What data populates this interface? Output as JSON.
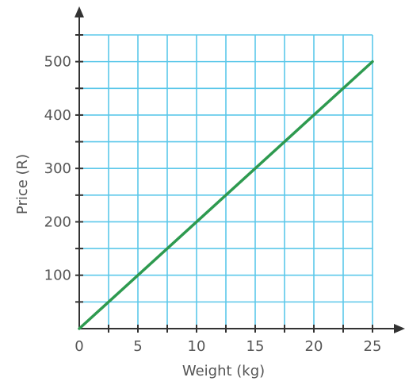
{
  "chart_data": {
    "type": "line",
    "title": "",
    "xlabel": "Weight  (kg)",
    "ylabel": "Price (R)",
    "xlim": [
      0,
      25
    ],
    "ylim": [
      0,
      550
    ],
    "xticks": [
      0,
      5,
      10,
      15,
      20,
      25
    ],
    "yticks": [
      100,
      200,
      300,
      400,
      500
    ],
    "x_minor_step": 2.5,
    "y_minor_step": 50,
    "grid": true,
    "series": [
      {
        "x": [
          0,
          25
        ],
        "y": [
          0,
          500
        ]
      }
    ],
    "colors": {
      "grid": "#5cc8ea",
      "line": "#2e9a4f",
      "axis": "#333333",
      "text": "#555555"
    }
  }
}
